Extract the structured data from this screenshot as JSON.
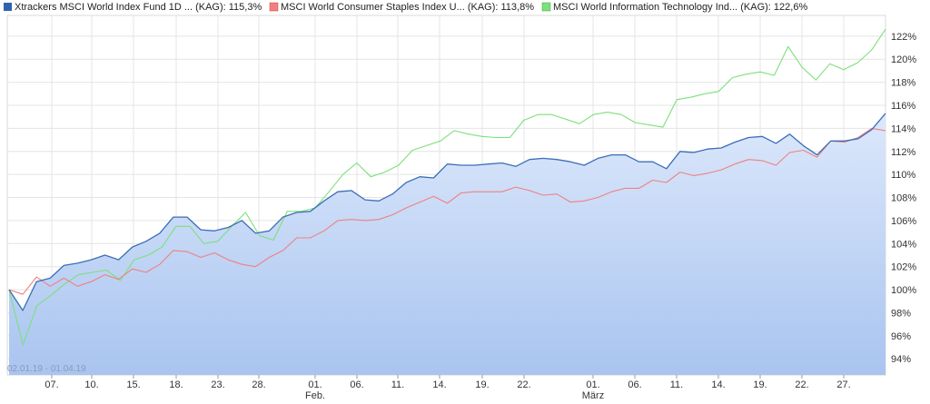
{
  "chart_data": {
    "type": "line",
    "date_range": "02.01.19 - 01.04.19",
    "ylim": [
      92.6,
      123.8
    ],
    "y_ticks": [
      "94%",
      "96%",
      "98%",
      "100%",
      "102%",
      "104%",
      "106%",
      "108%",
      "110%",
      "112%",
      "114%",
      "116%",
      "118%",
      "120%",
      "122%"
    ],
    "x_ticks": [
      "07.",
      "10.",
      "15.",
      "18.",
      "23.",
      "28.",
      "01.",
      "06.",
      "11.",
      "14.",
      "19.",
      "22.",
      "01.",
      "06.",
      "11.",
      "14.",
      "19.",
      "22.",
      "27."
    ],
    "month_labels": [
      "Feb.",
      "März"
    ],
    "grid": true,
    "legend_position": "top",
    "series": [
      {
        "name": "Xtrackers MSCI World Index Fund 1D ... (KAG): 115,3%",
        "color": "#3b6fb6",
        "values": [
          100.0,
          98.2,
          100.7,
          101.0,
          102.1,
          102.3,
          102.6,
          103.0,
          102.6,
          103.7,
          104.2,
          104.9,
          106.3,
          106.3,
          105.2,
          105.1,
          105.4,
          106.0,
          104.9,
          105.1,
          106.3,
          106.7,
          106.8,
          107.7,
          108.5,
          108.6,
          107.8,
          107.7,
          108.3,
          109.3,
          109.8,
          109.7,
          110.9,
          110.8,
          110.8,
          110.9,
          111.0,
          110.7,
          111.3,
          111.4,
          111.3,
          111.1,
          110.8,
          111.4,
          111.7,
          111.7,
          111.1,
          111.1,
          110.5,
          112.0,
          111.9,
          112.2,
          112.3,
          112.8,
          113.2,
          113.3,
          112.7,
          113.5,
          112.5,
          111.7,
          112.9,
          112.9,
          113.1,
          113.9,
          115.3
        ]
      },
      {
        "name": "MSCI World Consumer Staples Index U... (KAG): 113,8%",
        "color": "#f08080",
        "values": [
          100.0,
          99.6,
          101.1,
          100.3,
          101.0,
          100.3,
          100.7,
          101.3,
          100.9,
          101.8,
          101.5,
          102.2,
          103.4,
          103.3,
          102.8,
          103.2,
          102.6,
          102.2,
          102.0,
          102.8,
          103.4,
          104.5,
          104.5,
          105.1,
          106.0,
          106.1,
          106.0,
          106.1,
          106.5,
          107.1,
          107.6,
          108.1,
          107.5,
          108.4,
          108.5,
          108.5,
          108.5,
          108.9,
          108.6,
          108.2,
          108.3,
          107.6,
          107.7,
          108.0,
          108.5,
          108.8,
          108.8,
          109.5,
          109.3,
          110.2,
          109.9,
          110.1,
          110.4,
          110.9,
          111.3,
          111.2,
          110.8,
          111.9,
          112.1,
          111.5,
          112.9,
          112.8,
          113.2,
          114.0,
          113.8
        ]
      },
      {
        "name": "MSCI World Information Technology Ind... (KAG): 122,6%",
        "color": "#7ce07c",
        "values": [
          100.0,
          95.2,
          98.6,
          99.5,
          100.5,
          101.3,
          101.5,
          101.7,
          100.8,
          102.6,
          103.0,
          103.7,
          105.5,
          105.5,
          104.0,
          104.2,
          105.5,
          106.7,
          104.7,
          104.3,
          106.8,
          106.8,
          107.1,
          108.5,
          110.0,
          111.0,
          109.8,
          110.2,
          110.8,
          112.1,
          112.5,
          112.9,
          113.8,
          113.5,
          113.3,
          113.2,
          113.2,
          114.7,
          115.2,
          115.2,
          114.8,
          114.4,
          115.2,
          115.4,
          115.2,
          114.5,
          114.3,
          114.1,
          116.5,
          116.7,
          117.0,
          117.2,
          118.4,
          118.7,
          118.9,
          118.6,
          121.1,
          119.3,
          118.2,
          119.6,
          119.1,
          119.7,
          120.8,
          122.6
        ]
      }
    ]
  }
}
